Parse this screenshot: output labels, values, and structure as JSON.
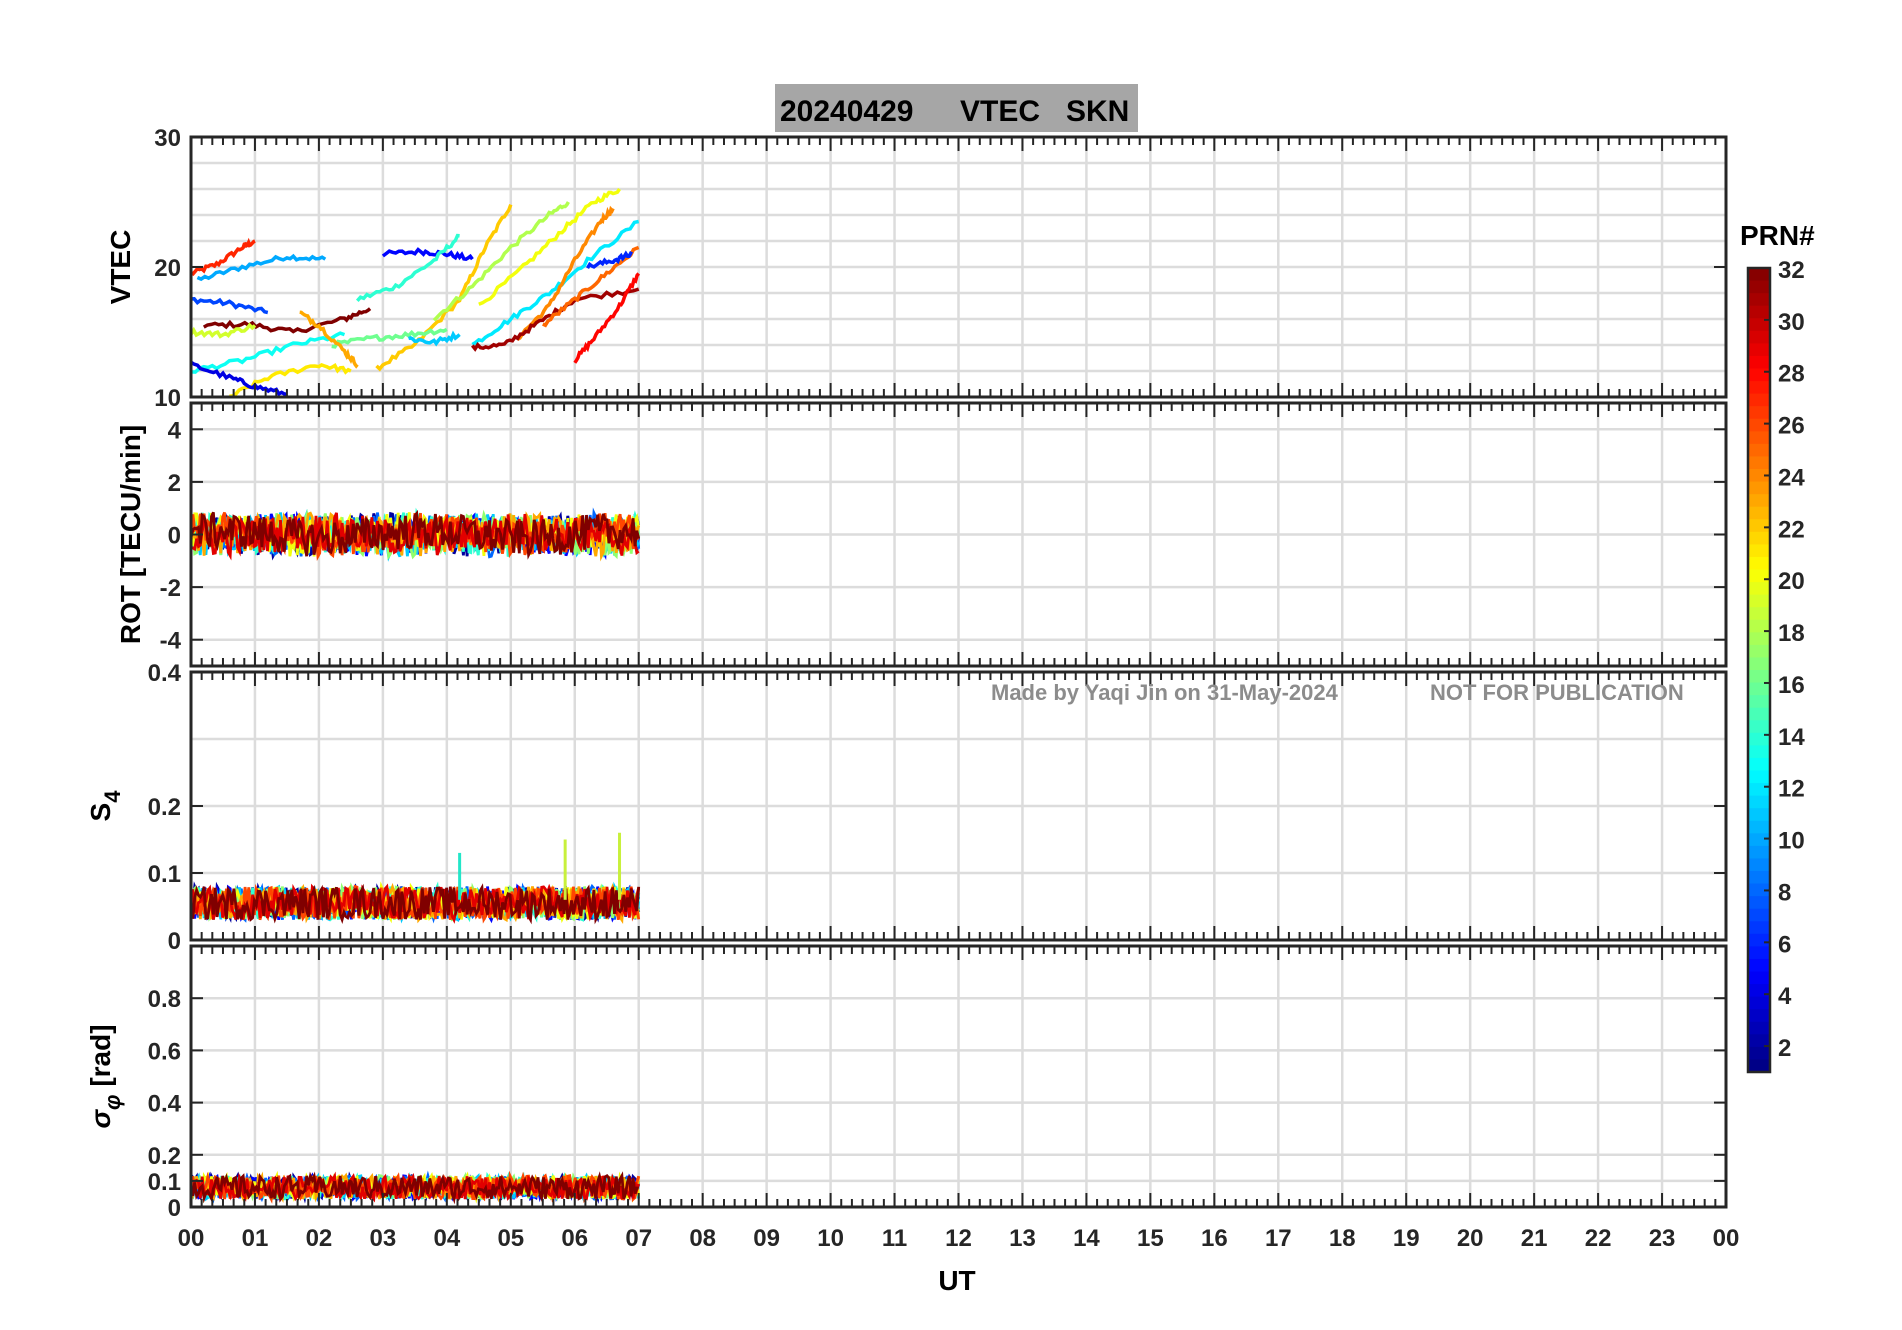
{
  "title_bar": {
    "date": "20240429",
    "quantity": "VTEC",
    "station": "SKN",
    "background": "#a6a6a6"
  },
  "watermark": {
    "author": "Made by Yaqi Jin on 31-May-2024",
    "notice": "NOT FOR PUBLICATION"
  },
  "chart_data": [
    {
      "type": "line",
      "name": "vtec",
      "ylabel": "VTEC",
      "ylim": [
        10,
        30
      ],
      "yticks": [
        10,
        20,
        30
      ],
      "ytick_labels": [
        "10",
        "20",
        "30"
      ],
      "grid": true,
      "x_unit": "UT hour",
      "data_extent_hours": [
        0,
        7
      ],
      "sample_tracks": [
        {
          "prn": 27,
          "points": [
            [
              0.0,
              19.5
            ],
            [
              0.4,
              20.2
            ],
            [
              0.8,
              21.5
            ],
            [
              1.0,
              22.0
            ]
          ]
        },
        {
          "prn": 10,
          "points": [
            [
              0.1,
              19.0
            ],
            [
              0.8,
              20.0
            ],
            [
              1.5,
              20.8
            ],
            [
              2.1,
              20.6
            ]
          ]
        },
        {
          "prn": 7,
          "points": [
            [
              0.0,
              17.5
            ],
            [
              0.6,
              17.2
            ],
            [
              1.2,
              16.5
            ]
          ]
        },
        {
          "prn": 32,
          "points": [
            [
              0.2,
              15.5
            ],
            [
              0.9,
              15.6
            ],
            [
              1.6,
              15.0
            ],
            [
              2.4,
              16.0
            ],
            [
              2.8,
              16.8
            ]
          ]
        },
        {
          "prn": 5,
          "points": [
            [
              3.0,
              21.0
            ],
            [
              3.6,
              21.2
            ],
            [
              4.0,
              21.0
            ],
            [
              4.4,
              20.6
            ]
          ]
        },
        {
          "prn": 14,
          "points": [
            [
              2.6,
              17.5
            ],
            [
              3.2,
              18.5
            ],
            [
              3.8,
              20.5
            ],
            [
              4.2,
              22.4
            ]
          ]
        },
        {
          "prn": 22,
          "points": [
            [
              2.9,
              12.2
            ],
            [
              3.5,
              14.0
            ],
            [
              4.2,
              17.5
            ],
            [
              4.6,
              21.5
            ],
            [
              5.0,
              24.8
            ]
          ]
        },
        {
          "prn": 18,
          "points": [
            [
              3.8,
              16.0
            ],
            [
              4.4,
              18.5
            ],
            [
              5.0,
              21.5
            ],
            [
              5.6,
              24.0
            ],
            [
              5.9,
              25.0
            ]
          ]
        },
        {
          "prn": 20,
          "points": [
            [
              4.5,
              17.0
            ],
            [
              5.2,
              20.0
            ],
            [
              5.8,
              22.8
            ],
            [
              6.3,
              25.0
            ],
            [
              6.7,
              26.0
            ]
          ]
        },
        {
          "prn": 12,
          "points": [
            [
              4.4,
              14.0
            ],
            [
              5.0,
              16.0
            ],
            [
              5.6,
              18.0
            ],
            [
              6.2,
              20.5
            ],
            [
              7.0,
              23.5
            ]
          ]
        },
        {
          "prn": 24,
          "points": [
            [
              5.1,
              14.5
            ],
            [
              5.6,
              17.0
            ],
            [
              6.0,
              20.5
            ],
            [
              6.4,
              23.5
            ],
            [
              6.6,
              24.5
            ]
          ]
        },
        {
          "prn": 31,
          "points": [
            [
              4.4,
              13.8
            ],
            [
              4.9,
              14.0
            ],
            [
              5.4,
              15.6
            ],
            [
              6.0,
              17.5
            ],
            [
              7.0,
              18.3
            ]
          ]
        },
        {
          "prn": 28,
          "points": [
            [
              6.0,
              12.8
            ],
            [
              6.3,
              14.5
            ],
            [
              6.7,
              17.0
            ],
            [
              7.0,
              19.5
            ]
          ]
        },
        {
          "prn": 25,
          "points": [
            [
              5.5,
              15.5
            ],
            [
              6.0,
              17.5
            ],
            [
              6.5,
              19.5
            ],
            [
              7.0,
              21.5
            ]
          ]
        },
        {
          "prn": 13,
          "points": [
            [
              0.0,
              12.0
            ],
            [
              0.8,
              12.8
            ],
            [
              1.6,
              14.0
            ],
            [
              2.4,
              14.8
            ]
          ]
        },
        {
          "prn": 21,
          "points": [
            [
              0.6,
              10.0
            ],
            [
              1.2,
              11.5
            ],
            [
              2.0,
              12.5
            ],
            [
              2.5,
              12.0
            ]
          ]
        },
        {
          "prn": 4,
          "points": [
            [
              0.0,
              12.5
            ],
            [
              0.6,
              11.5
            ],
            [
              1.0,
              10.8
            ],
            [
              1.5,
              10.2
            ]
          ]
        },
        {
          "prn": 16,
          "points": [
            [
              2.2,
              14.0
            ],
            [
              2.8,
              14.5
            ],
            [
              3.4,
              14.8
            ],
            [
              4.0,
              15.2
            ]
          ]
        },
        {
          "prn": 11,
          "points": [
            [
              3.4,
              14.5
            ],
            [
              3.8,
              14.2
            ],
            [
              4.2,
              14.8
            ]
          ]
        },
        {
          "prn": 19,
          "points": [
            [
              0.0,
              15.0
            ],
            [
              0.5,
              14.8
            ],
            [
              1.0,
              15.5
            ]
          ]
        },
        {
          "prn": 23,
          "points": [
            [
              1.7,
              16.5
            ],
            [
              2.0,
              15.5
            ],
            [
              2.4,
              13.5
            ],
            [
              2.6,
              12.5
            ]
          ]
        },
        {
          "prn": 6,
          "points": [
            [
              6.2,
              20.0
            ],
            [
              6.6,
              20.5
            ],
            [
              6.9,
              21.0
            ]
          ]
        }
      ]
    },
    {
      "type": "line",
      "name": "rot",
      "ylabel": "ROT [TECU/min]",
      "ylim": [
        -5,
        5
      ],
      "yticks": [
        -4,
        -2,
        0,
        2,
        4
      ],
      "ytick_labels": [
        "-4",
        "-2",
        "0",
        "2",
        "4"
      ],
      "grid": true,
      "data_extent_hours": [
        0,
        7
      ],
      "typical_range": [
        -1,
        1
      ]
    },
    {
      "type": "line",
      "name": "s4",
      "ylabel": "S",
      "ylabel_subscript": "4",
      "ylim": [
        0,
        0.4
      ],
      "yticks": [
        0,
        0.1,
        0.2,
        0.4
      ],
      "ytick_labels": [
        "0",
        "0.1",
        "0.2",
        "0.4"
      ],
      "grid": true,
      "data_extent_hours": [
        0,
        7
      ],
      "typical_range": [
        0.03,
        0.08
      ],
      "spikes": [
        [
          4.2,
          0.13
        ],
        [
          5.85,
          0.15
        ],
        [
          6.7,
          0.16
        ]
      ]
    },
    {
      "type": "line",
      "name": "sigma_phi",
      "ylabel": "σ",
      "ylabel_subscript": "φ",
      "ylabel_unit": " [rad]",
      "ylim": [
        0,
        1
      ],
      "yticks": [
        0,
        0.1,
        0.2,
        0.4,
        0.6,
        0.8
      ],
      "ytick_labels": [
        "0",
        "0.1",
        "0.2",
        "0.4",
        "0.6",
        "0.8"
      ],
      "grid": true,
      "data_extent_hours": [
        0,
        7
      ],
      "typical_range": [
        0.03,
        0.12
      ]
    }
  ],
  "x_axis": {
    "label": "UT",
    "range": [
      0,
      24
    ],
    "ticks": [
      "00",
      "01",
      "02",
      "03",
      "04",
      "05",
      "06",
      "07",
      "08",
      "09",
      "10",
      "11",
      "12",
      "13",
      "14",
      "15",
      "16",
      "17",
      "18",
      "19",
      "20",
      "21",
      "22",
      "23",
      "00"
    ]
  },
  "colorbar": {
    "title": "PRN#",
    "range": [
      1,
      32
    ],
    "ticks": [
      2,
      4,
      6,
      8,
      10,
      12,
      14,
      16,
      18,
      20,
      22,
      24,
      26,
      28,
      30,
      32
    ],
    "tick_labels": [
      "2",
      "4",
      "6",
      "8",
      "10",
      "12",
      "14",
      "16",
      "18",
      "20",
      "22",
      "24",
      "26",
      "28",
      "30",
      "32"
    ],
    "colormap": "jet"
  }
}
